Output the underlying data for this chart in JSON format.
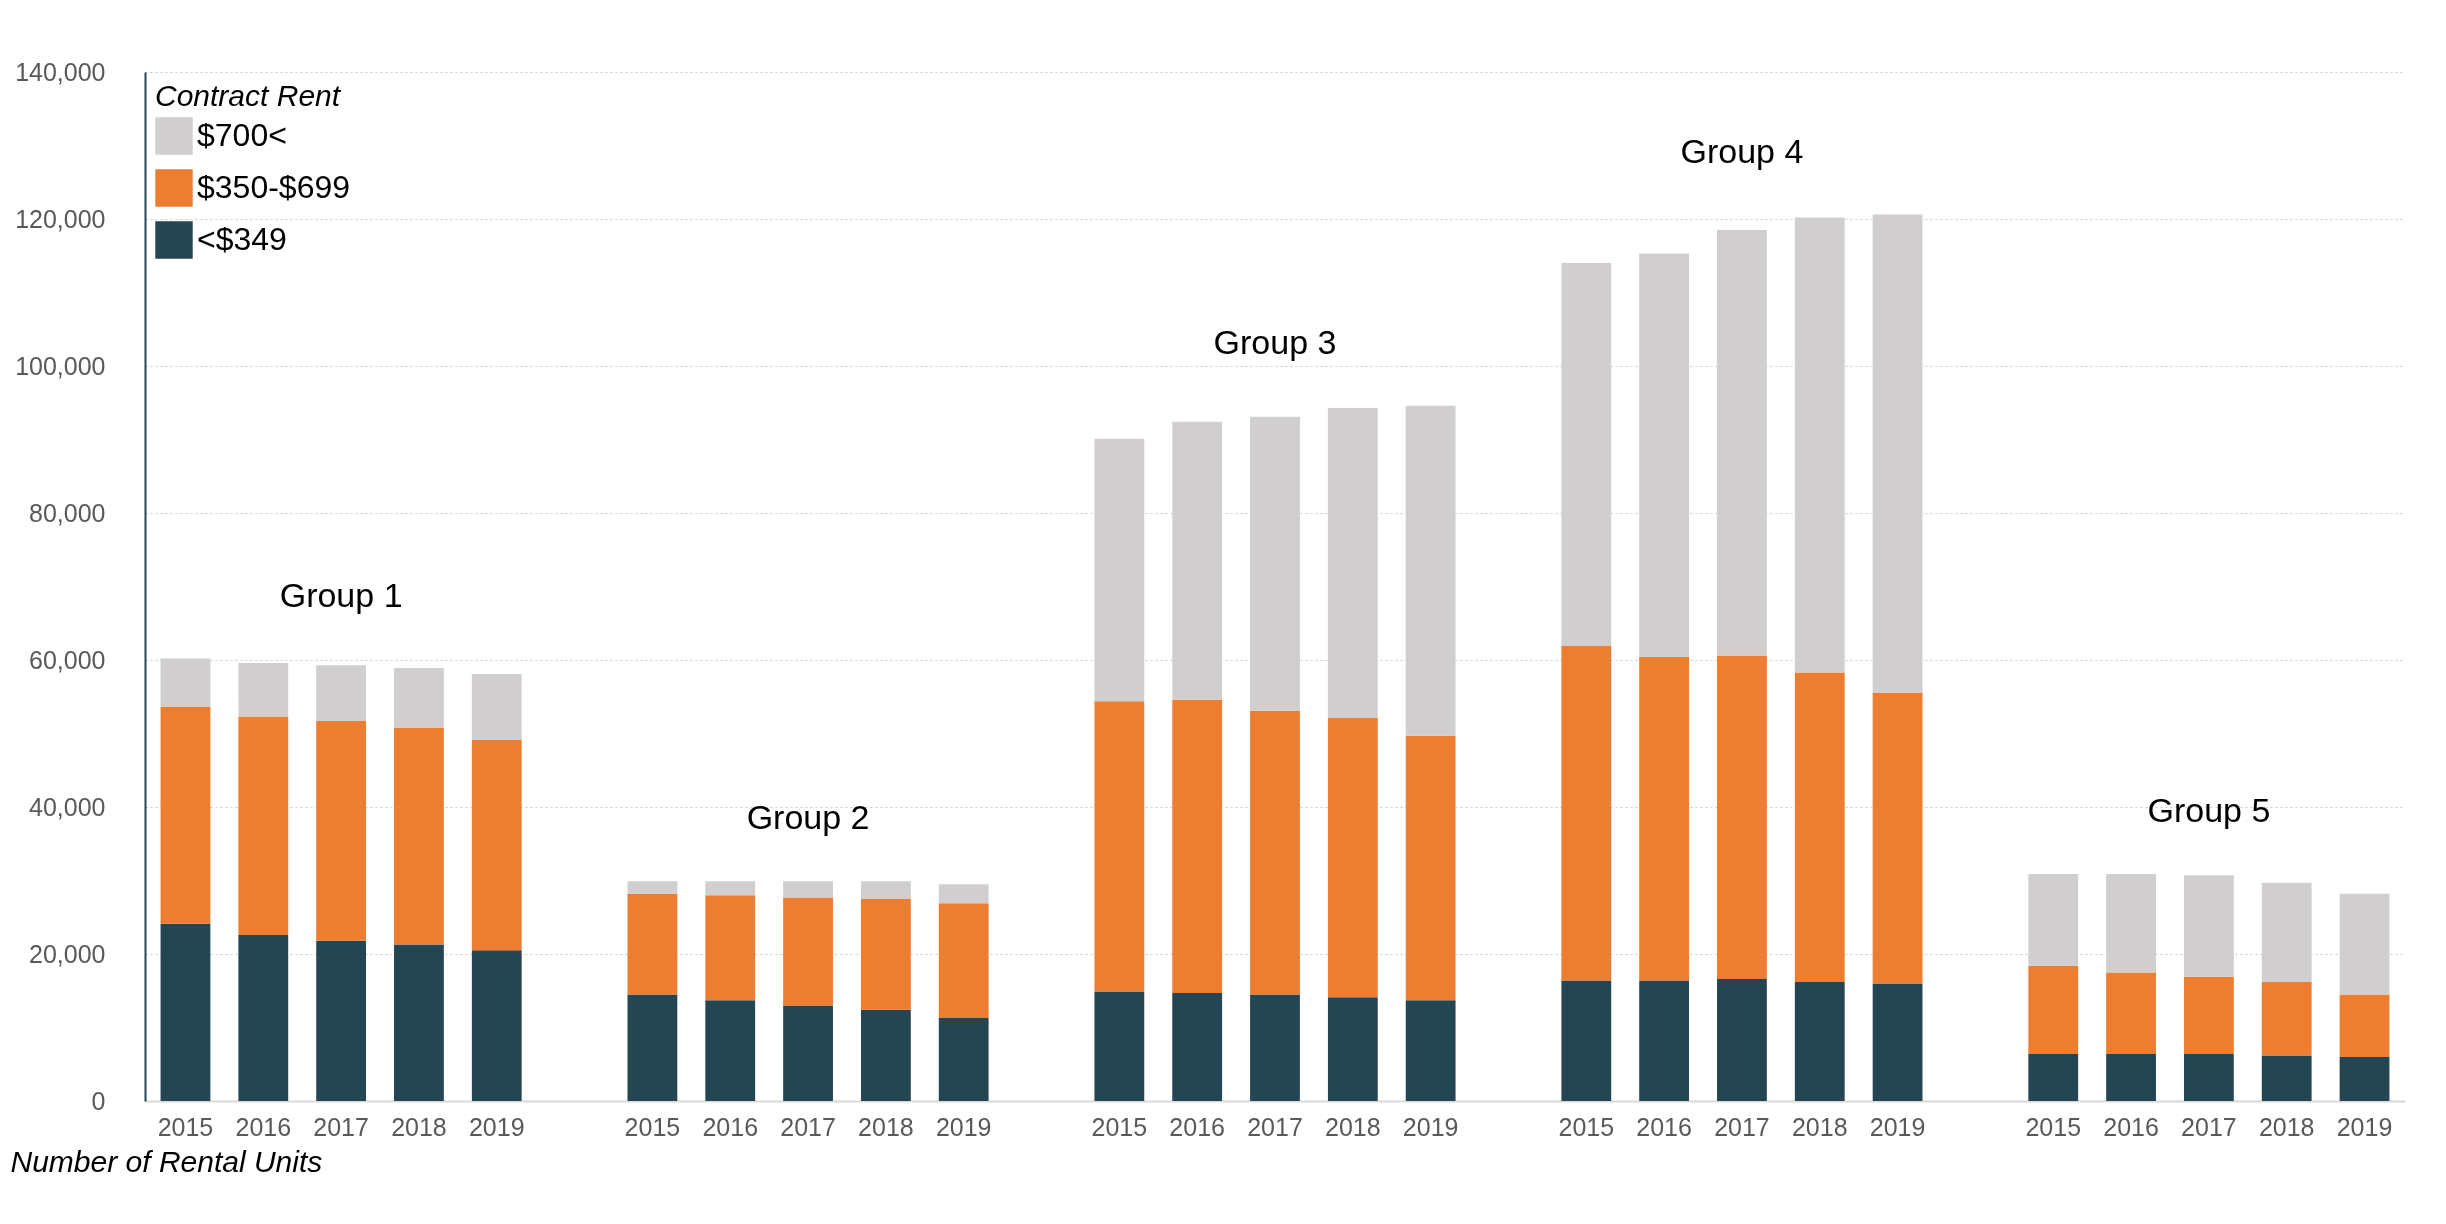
{
  "chart_data": {
    "type": "bar",
    "stacked": true,
    "categories": [
      "2015",
      "2016",
      "2017",
      "2018",
      "2019",
      null,
      "2015",
      "2016",
      "2017",
      "2018",
      "2019",
      null,
      "2015",
      "2016",
      "2017",
      "2018",
      "2019",
      null,
      "2015",
      "2016",
      "2017",
      "2018",
      "2019",
      null,
      "2015",
      "2016",
      "2017",
      "2018",
      "2019"
    ],
    "series": [
      {
        "name": "<$349",
        "color": "#234652",
        "values": [
          24100,
          22600,
          21800,
          21300,
          20500,
          null,
          14500,
          13700,
          13000,
          12400,
          11300,
          null,
          14900,
          14700,
          14500,
          14100,
          13700,
          null,
          16400,
          16400,
          16600,
          16200,
          16000,
          null,
          6400,
          6400,
          6400,
          6200,
          6000
        ]
      },
      {
        "name": "$350-$699",
        "color": "#ed7d31",
        "values": [
          29500,
          29700,
          29900,
          29500,
          28600,
          null,
          13700,
          14300,
          14700,
          15100,
          15600,
          null,
          39500,
          39900,
          38600,
          38000,
          36000,
          null,
          45500,
          44000,
          44000,
          42100,
          39500,
          null,
          12000,
          11100,
          10500,
          10000,
          8500
        ]
      },
      {
        "name": "$700<",
        "color": "#d0cece",
        "values": [
          6600,
          7300,
          7600,
          8100,
          9000,
          null,
          1700,
          1900,
          2200,
          2400,
          2600,
          null,
          35700,
          37800,
          40000,
          42200,
          44900,
          null,
          52100,
          54900,
          57900,
          61900,
          65100,
          null,
          12500,
          13400,
          13800,
          13500,
          13700
        ]
      }
    ],
    "ylabel": "Number of Rental Units",
    "legend_title": "Contract Rent",
    "legend": "top left",
    "ylim": [
      0,
      140000
    ],
    "yticks": [
      0,
      {
        "value": 20000,
        "label": "20,000"
      },
      {
        "value": 40000,
        "label": "40,000"
      },
      {
        "value": 60000,
        "label": "60,000"
      },
      {
        "value": 80000,
        "label": "80,000"
      },
      {
        "value": 100000,
        "label": "100,000"
      },
      {
        "value": 120000,
        "label": "120,000"
      },
      {
        "value": 140000,
        "label": "140,000"
      }
    ],
    "grid": "y",
    "annotations": [
      "Group 1",
      "Group 2",
      "Group 3",
      "Group 4",
      "Group 5"
    ]
  }
}
